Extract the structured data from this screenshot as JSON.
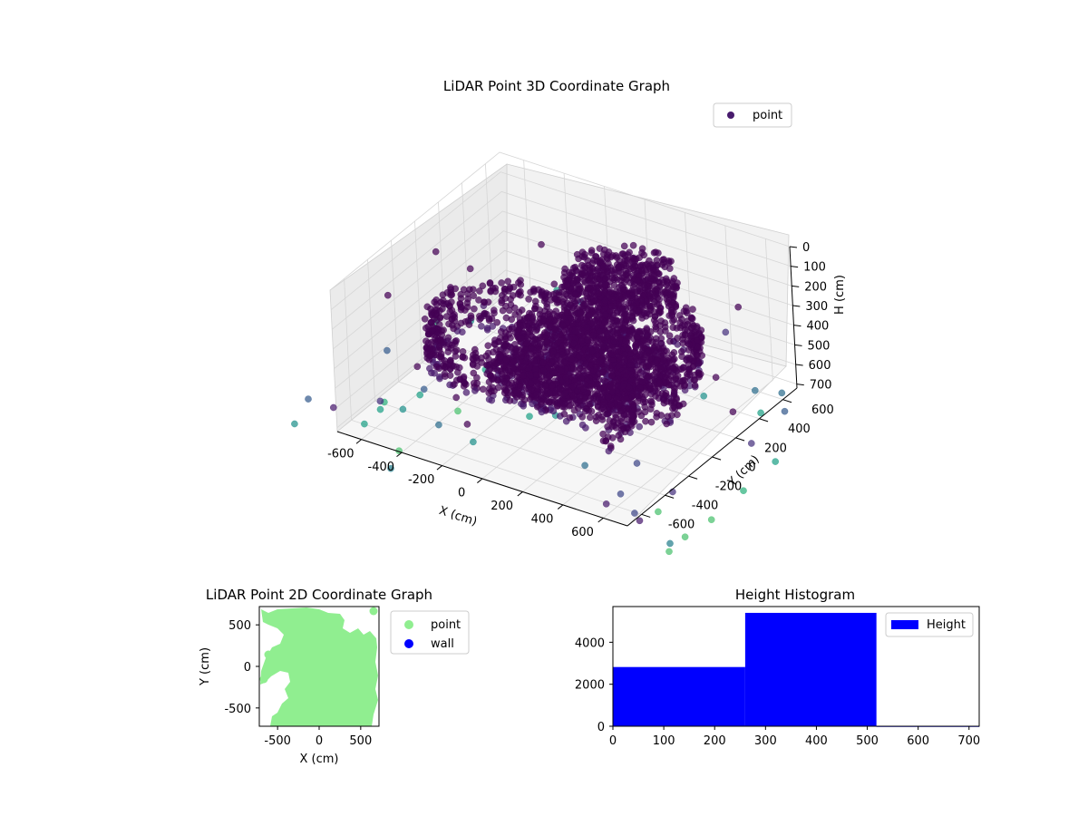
{
  "chart_data": [
    {
      "type": "scatter",
      "title": "LiDAR Point 3D Coordinate Graph",
      "xlabel": "X (cm)",
      "ylabel": "Y (cm)",
      "zlabel": "H (cm)",
      "x_ticks": [
        "-600",
        "-400",
        "-200",
        "0",
        "200",
        "400",
        "600"
      ],
      "y_ticks": [
        "-600",
        "-400",
        "-200",
        "0",
        "200",
        "400",
        "600"
      ],
      "z_ticks": [
        "0",
        "100",
        "200",
        "300",
        "400",
        "500",
        "600",
        "700"
      ],
      "xlim": [
        -720,
        720
      ],
      "ylim": [
        -720,
        720
      ],
      "zlim": [
        0,
        720
      ],
      "z_axis_inverted": true,
      "colormap": "viridis",
      "legend": {
        "placement": "top-right",
        "entries": [
          {
            "label": "point",
            "color": "#481b6d"
          }
        ]
      },
      "grid": true
    },
    {
      "type": "scatter",
      "title": "LiDAR Point 2D Coordinate Graph",
      "xlabel": "X (cm)",
      "ylabel": "Y (cm)",
      "x_ticks": [
        "-500",
        "0",
        "500"
      ],
      "y_ticks": [
        "500",
        "0",
        "-500"
      ],
      "xlim": [
        -720,
        720
      ],
      "ylim": [
        -720,
        720
      ],
      "legend": {
        "placement": "outside-right",
        "entries": [
          {
            "label": "point",
            "color": "#90ee90"
          },
          {
            "label": "wall",
            "color": "#0000ff"
          }
        ]
      }
    },
    {
      "type": "bar",
      "title": "Height Histogram",
      "bins": [
        [
          0,
          260
        ],
        [
          260,
          518
        ],
        [
          518,
          720
        ]
      ],
      "values": [
        2820,
        5400,
        20
      ],
      "color": "#0000ff",
      "x_ticks": [
        "0",
        "100",
        "200",
        "300",
        "400",
        "500",
        "600",
        "700"
      ],
      "y_ticks": [
        "0",
        "2000",
        "4000"
      ],
      "xlim": [
        0,
        720
      ],
      "ylim": [
        0,
        5700
      ],
      "legend": {
        "placement": "top-right",
        "entries": [
          {
            "label": "Height",
            "color": "#0000ff"
          }
        ]
      }
    }
  ]
}
